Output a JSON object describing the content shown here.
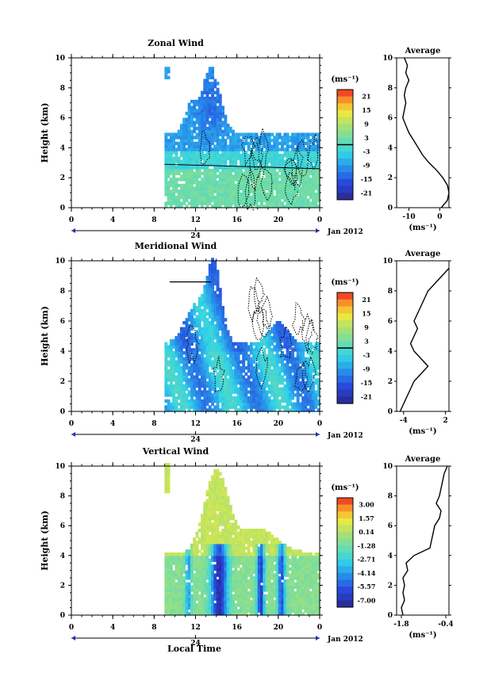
{
  "figure": {
    "date_label": "Jan 2012",
    "bottom_xlabel": "Local Time",
    "colors": {
      "axis": "#000000",
      "missing": "#ffffff"
    }
  },
  "chart_data": [
    {
      "type": "heatmap",
      "title": "Zonal Wind",
      "ylabel": "Height (km)",
      "ylim": [
        0,
        10
      ],
      "yticks": [
        0,
        2,
        4,
        6,
        8,
        10
      ],
      "xlim": [
        0,
        24
      ],
      "xticks": [
        "0",
        "4",
        "8",
        "12",
        "16",
        "20",
        "0"
      ],
      "day_label": "24",
      "data_start_hour": 9,
      "colorbar": {
        "unit": "(ms⁻¹)",
        "ticks": [
          "21",
          "15",
          "9",
          "3",
          "-3",
          "-9",
          "-15",
          "-21"
        ],
        "range": [
          -24,
          24
        ],
        "marker": 0
      },
      "average": {
        "title": "Average",
        "xlabel": "(ms⁻¹)",
        "xlim": [
          -14,
          3
        ],
        "xticks": [
          "-10",
          "0"
        ],
        "xtick_values": [
          -10,
          0
        ],
        "profile": [
          [
            0.0,
            0.5
          ],
          [
            0.5,
            2.5
          ],
          [
            1.0,
            3.0
          ],
          [
            1.5,
            2.5
          ],
          [
            2.0,
            1.0
          ],
          [
            2.5,
            -1.0
          ],
          [
            3.0,
            -3.5
          ],
          [
            3.5,
            -5.5
          ],
          [
            4.0,
            -7.0
          ],
          [
            4.5,
            -8.5
          ],
          [
            5.0,
            -10.0
          ],
          [
            5.5,
            -11.0
          ],
          [
            6.0,
            -12.0
          ],
          [
            6.5,
            -11.5
          ],
          [
            7.0,
            -11.0
          ],
          [
            7.5,
            -11.5
          ],
          [
            8.0,
            -11.0
          ],
          [
            8.5,
            -10.0
          ],
          [
            9.0,
            -11.0
          ],
          [
            9.5,
            -10.5
          ],
          [
            10.0,
            -11.5
          ]
        ]
      }
    },
    {
      "type": "heatmap",
      "title": "Meridional Wind",
      "ylabel": "Height (km)",
      "ylim": [
        0,
        10
      ],
      "yticks": [
        0,
        2,
        4,
        6,
        8,
        10
      ],
      "xlim": [
        0,
        24
      ],
      "xticks": [
        "0",
        "4",
        "8",
        "12",
        "16",
        "20",
        "0"
      ],
      "day_label": "24",
      "data_start_hour": 9,
      "colorbar": {
        "unit": "(ms⁻¹)",
        "ticks": [
          "21",
          "15",
          "9",
          "3",
          "-3",
          "-9",
          "-15",
          "-21"
        ],
        "range": [
          -24,
          24
        ],
        "marker": 0
      },
      "average": {
        "title": "Average",
        "xlabel": "(ms⁻¹)",
        "xlim": [
          -5,
          2.5
        ],
        "xticks": [
          "-4",
          "2"
        ],
        "xtick_values": [
          -4,
          2
        ],
        "profile": [
          [
            0.0,
            -4.5
          ],
          [
            0.5,
            -4.0
          ],
          [
            1.0,
            -3.5
          ],
          [
            1.5,
            -3.0
          ],
          [
            2.0,
            -2.5
          ],
          [
            2.5,
            -1.5
          ],
          [
            3.0,
            -0.5
          ],
          [
            3.5,
            -1.5
          ],
          [
            4.0,
            -2.5
          ],
          [
            4.5,
            -3.0
          ],
          [
            5.0,
            -2.5
          ],
          [
            5.5,
            -2.0
          ],
          [
            6.0,
            -2.5
          ],
          [
            6.5,
            -2.0
          ],
          [
            7.0,
            -1.5
          ],
          [
            7.5,
            -1.0
          ],
          [
            8.0,
            -0.5
          ],
          [
            8.5,
            0.5
          ],
          [
            9.0,
            1.5
          ],
          [
            9.5,
            2.5
          ]
        ]
      }
    },
    {
      "type": "heatmap",
      "title": "Vertical Wind",
      "ylabel": "Height (km)",
      "ylim": [
        0,
        10
      ],
      "yticks": [
        0,
        2,
        4,
        6,
        8,
        10
      ],
      "xlim": [
        0,
        24
      ],
      "xticks": [
        "0",
        "4",
        "8",
        "12",
        "16",
        "20",
        "0"
      ],
      "day_label": "24",
      "data_start_hour": 9,
      "colorbar": {
        "unit": "(ms⁻¹)",
        "ticks": [
          "3.00",
          "1.57",
          "0.14",
          "-1.28",
          "-2.71",
          "-4.14",
          "-5.57",
          "-7.00"
        ],
        "range": [
          -7.7,
          3.7
        ],
        "marker": null
      },
      "average": {
        "title": "Average",
        "xlabel": "(ms⁻¹)",
        "xlim": [
          -1.95,
          -0.3
        ],
        "xticks": [
          "-1.8",
          "-0.4"
        ],
        "xtick_values": [
          -1.8,
          -0.4
        ],
        "profile": [
          [
            0.0,
            -1.75
          ],
          [
            0.5,
            -1.8
          ],
          [
            1.0,
            -1.7
          ],
          [
            1.5,
            -1.75
          ],
          [
            2.0,
            -1.7
          ],
          [
            2.5,
            -1.75
          ],
          [
            3.0,
            -1.6
          ],
          [
            3.5,
            -1.65
          ],
          [
            4.0,
            -1.4
          ],
          [
            4.5,
            -0.9
          ],
          [
            5.0,
            -0.85
          ],
          [
            5.5,
            -0.8
          ],
          [
            6.0,
            -0.75
          ],
          [
            6.5,
            -0.6
          ],
          [
            7.0,
            -0.55
          ],
          [
            7.5,
            -0.7
          ],
          [
            8.0,
            -0.6
          ],
          [
            8.5,
            -0.55
          ],
          [
            9.0,
            -0.5
          ],
          [
            9.5,
            -0.45
          ],
          [
            10.0,
            -0.35
          ]
        ]
      }
    }
  ]
}
